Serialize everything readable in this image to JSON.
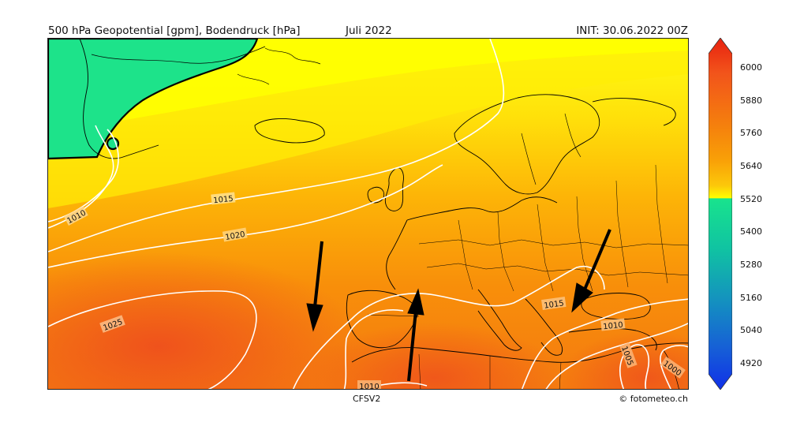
{
  "header": {
    "title_left": "500 hPa Geopotential [gpm], Bodendruck [hPa]",
    "title_center": "Juli 2022",
    "title_right": "INIT: 30.06.2022 00Z"
  },
  "footer": {
    "model": "CFSV2",
    "credit": "© fotometeo.ch"
  },
  "map": {
    "isobar_labels": [
      "1010",
      "1015",
      "1020",
      "1025",
      "1015",
      "1010",
      "1005",
      "1000",
      "1010"
    ],
    "colors": {
      "low_green": "#1de38a",
      "yellow": "#ffff00",
      "orange": "#f58a0a",
      "red_orange": "#f2581c",
      "isobar": "#ffffff",
      "coast": "#000000"
    }
  },
  "colorbar": {
    "ticks": [
      "6000",
      "5880",
      "5760",
      "5640",
      "5520",
      "5400",
      "5280",
      "5160",
      "5040",
      "4920"
    ],
    "stops": [
      "#e8210f",
      "#f2541b",
      "#f5800d",
      "#f9a107",
      "#fcc80a",
      "#ffff00",
      "#18e38d",
      "#10c3a2",
      "#1490c0",
      "#1660d6",
      "#1030e8"
    ]
  }
}
